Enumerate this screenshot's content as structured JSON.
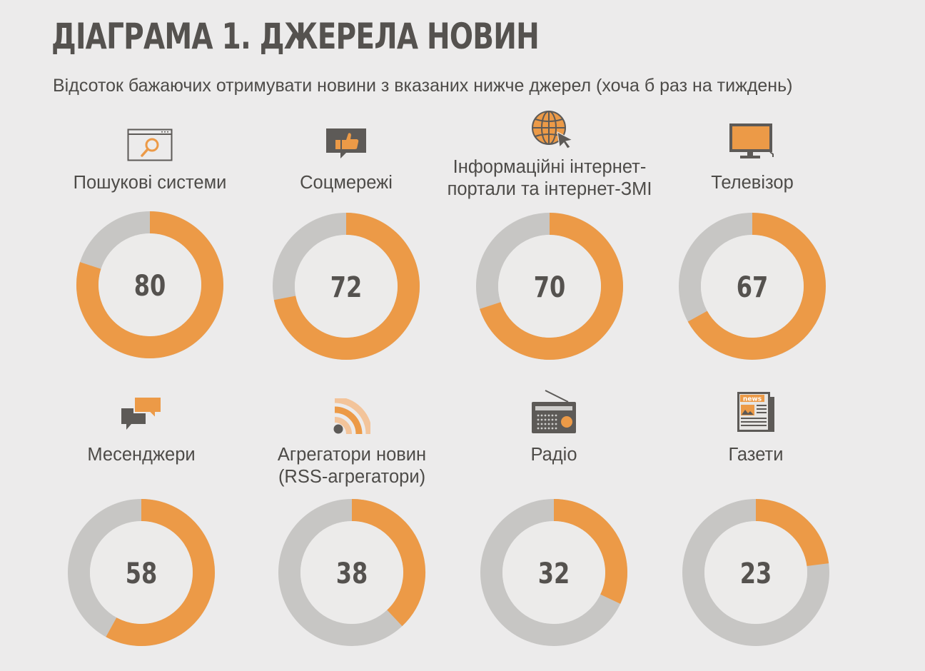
{
  "title": "ДІАГРАМА 1. ДЖЕРЕЛА НОВИН",
  "subtitle": "Відсоток бажаючих отримувати новини з вказаних нижче джерел (хоча б раз на тиждень)",
  "colors": {
    "accent": "#ec9a47",
    "remainder": "#c7c6c4",
    "hole": "#ecebea",
    "icon_dark": "#5d5a57"
  },
  "chart_data": {
    "type": "pie",
    "variant": "donut",
    "title": "ДІАГРАМА 1. ДЖЕРЕЛА НОВИН",
    "subtitle": "Відсоток бажаючих отримувати новини з вказаних нижче джерел (хоча б раз на тиждень)",
    "unit": "%",
    "categories": [
      "Пошукові системи",
      "Соцмережі",
      "Інформаційні інтернет-портали та інтернет-ЗМІ",
      "Телевізор",
      "Месенджери",
      "Агрегатори новин (RSS-агрегатори)",
      "Радіо",
      "Газети"
    ],
    "values": [
      80,
      72,
      70,
      67,
      58,
      38,
      32,
      23
    ],
    "max": 100
  },
  "items": [
    {
      "label": "Пошукові системи",
      "value": "80",
      "icon": "search-window-icon"
    },
    {
      "label": "Соцмережі",
      "value": "72",
      "icon": "thumbs-up-icon"
    },
    {
      "label": "Інформаційні інтернет-\nпортали та інтернет-ЗМІ",
      "value": "70",
      "icon": "globe-cursor-icon"
    },
    {
      "label": "Телевізор",
      "value": "67",
      "icon": "tv-icon"
    },
    {
      "label": "Месенджери",
      "value": "58",
      "icon": "chat-bubbles-icon"
    },
    {
      "label": "Агрегатори новин\n(RSS-агрегатори)",
      "value": "38",
      "icon": "rss-icon"
    },
    {
      "label": "Радіо",
      "value": "32",
      "icon": "radio-icon"
    },
    {
      "label": "Газети",
      "value": "23",
      "icon": "newspaper-icon"
    }
  ],
  "newspaper_icon_text": "news"
}
